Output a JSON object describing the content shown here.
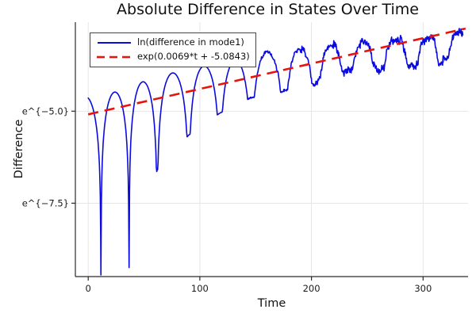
{
  "figure": {
    "background": "#ffffff"
  },
  "chart_data": {
    "type": "line",
    "title": "Absolute Difference in States Over Time",
    "xlabel": "Time",
    "ylabel": "Difference",
    "x_scale": "linear",
    "y_scale": "log-natural (tick labels rendered as e^{value})",
    "xlim": [
      -11.5,
      340.3
    ],
    "ylim_ln": [
      -9.495,
      -2.58
    ],
    "grid": true,
    "grid_color": "#e3e3e3",
    "axis_color": "#2a2a2a",
    "tick_label_color": "#1a1a1a",
    "x_ticks": [
      {
        "value": 0,
        "label": "0"
      },
      {
        "value": 100,
        "label": "100"
      },
      {
        "value": 200,
        "label": "200"
      },
      {
        "value": 300,
        "label": "300"
      }
    ],
    "y_ticks": [
      {
        "value": -5.0,
        "label": "e^{−5.0}"
      },
      {
        "value": -7.5,
        "label": "e^{−7.5}"
      }
    ],
    "legend": {
      "position": "top-left",
      "border_color": "#454545",
      "background": "#ffffff"
    },
    "series": [
      {
        "name": "ln(difference in mode1)",
        "color": "#0b0bdd",
        "line_style": "solid",
        "line_width": 1.6,
        "model": {
          "kind": "log-abs-oscillation",
          "note": "ln|difference| humps: value(t)=peak_k+ln|sin(pi*u)|, u=(t-c_k)/(c_{k+1}-c_k), clamped at interpolated cusp floors; jagged numerical noise appears after t~140",
          "cusp_times": [
            -16.5,
            11.4,
            36.6,
            61.8,
            90.0,
            118.0,
            146.0,
            175.5,
            204.0,
            232.0,
            261.0,
            291.5,
            318.0,
            346.0
          ],
          "cusp_floors": [
            -9.5,
            -9.45,
            -9.25,
            -6.6,
            -5.65,
            -5.05,
            -4.64,
            -4.46,
            -4.18,
            -3.96,
            -3.88,
            -3.77,
            -3.62,
            -3.5
          ],
          "segment_peaks": [
            -4.6,
            -4.48,
            -4.2,
            -3.96,
            -3.77,
            -3.62,
            -3.38,
            -3.3,
            -3.2,
            -3.1,
            -3.0,
            -2.95,
            -2.8
          ],
          "t_start": 0,
          "t_end": 336,
          "sample_step": 0.4,
          "noise_start_t": 140,
          "noise_base_amplitude": 0.03,
          "noise_growth_per_t": 0.0012,
          "noise_max_amplitude": 0.14
        }
      },
      {
        "name": "exp(0.0069*t + -5.0843)",
        "color": "#e8130c",
        "line_style": "dashed",
        "line_width": 2.6,
        "dash_pattern": [
          13,
          8
        ],
        "fit": {
          "slope": 0.0069,
          "intercept": -5.0843,
          "t_start": 0,
          "t_end": 338
        }
      }
    ]
  }
}
